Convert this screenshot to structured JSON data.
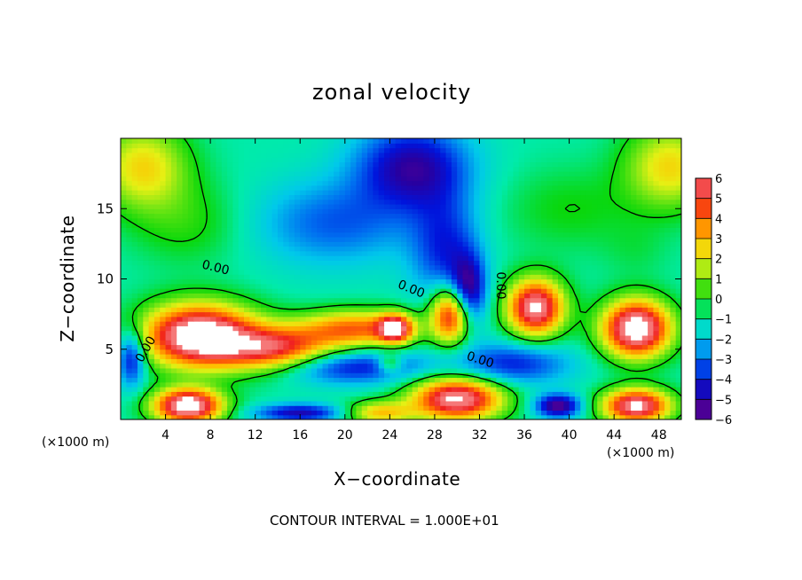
{
  "chart_data": {
    "type": "heatmap",
    "title": "zonal velocity",
    "xlabel": "X−coordinate",
    "ylabel": "Z−coordinate",
    "x_unit_left": "(×1000 m)",
    "x_unit_right": "(×1000 m)",
    "xlim": [
      0,
      50
    ],
    "ylim": [
      0,
      20
    ],
    "x_ticks": [
      4,
      8,
      12,
      16,
      20,
      24,
      28,
      32,
      36,
      40,
      44,
      48
    ],
    "x_tick_labels": [
      "4",
      "8",
      "12",
      "16",
      "20",
      "24",
      "28",
      "32",
      "36",
      "40",
      "44",
      "48"
    ],
    "y_ticks": [
      5,
      10,
      15
    ],
    "y_tick_labels": [
      "5",
      "10",
      "15"
    ],
    "colorbar": {
      "min": -6,
      "max": 6,
      "levels": [
        6,
        5,
        4,
        3,
        2,
        1,
        0,
        -1,
        -2,
        -3,
        -4,
        -5,
        -6
      ],
      "labels": [
        "6",
        "5",
        "4",
        "3",
        "2",
        "1",
        "0",
        "−1",
        "−2",
        "−3",
        "−4",
        "−5",
        "−6"
      ]
    },
    "contour_labels": [
      "0.00",
      "0.00",
      "0.00",
      "0.00",
      "0.00"
    ],
    "footnote": "CONTOUR INTERVAL = 1.000E+01",
    "features": [
      {
        "x": 2,
        "z": 18,
        "value": 3.5,
        "sx": 4,
        "sz": 3
      },
      {
        "x": 49,
        "z": 18,
        "value": 3.5,
        "sx": 4,
        "sz": 3
      },
      {
        "x": 6,
        "z": 14,
        "value": 1.2,
        "sx": 5,
        "sz": 3
      },
      {
        "x": 26,
        "z": 18,
        "value": -4.0,
        "sx": 5,
        "sz": 3
      },
      {
        "x": 19,
        "z": 14,
        "value": -2.2,
        "sx": 7,
        "sz": 3
      },
      {
        "x": 29,
        "z": 12,
        "value": -2.8,
        "sx": 3,
        "sz": 4
      },
      {
        "x": 31,
        "z": 9,
        "value": -4.5,
        "sx": 1.5,
        "sz": 2.5
      },
      {
        "x": 40,
        "z": 15,
        "value": 1.0,
        "sx": 6,
        "sz": 3
      },
      {
        "x": 46,
        "z": 12,
        "value": 0.5,
        "sx": 3,
        "sz": 2
      },
      {
        "x": 7,
        "z": 6,
        "value": 9.0,
        "sx": 5,
        "sz": 2.2
      },
      {
        "x": 14,
        "z": 5,
        "value": 6.0,
        "sx": 5,
        "sz": 1.6
      },
      {
        "x": 21,
        "z": 6.5,
        "value": 5.0,
        "sx": 5,
        "sz": 1.3
      },
      {
        "x": 24.5,
        "z": 6.5,
        "value": 6.5,
        "sx": 1.5,
        "sz": 1
      },
      {
        "x": 29.5,
        "z": 7.5,
        "value": 7.0,
        "sx": 1.8,
        "sz": 2
      },
      {
        "x": 37,
        "z": 8,
        "value": 8.0,
        "sx": 2.5,
        "sz": 2
      },
      {
        "x": 46,
        "z": 6.5,
        "value": 9.0,
        "sx": 3,
        "sz": 2
      },
      {
        "x": 20,
        "z": 3.8,
        "value": -3.5,
        "sx": 7,
        "sz": 1.2
      },
      {
        "x": 35,
        "z": 4,
        "value": -3.0,
        "sx": 5,
        "sz": 1.5
      },
      {
        "x": 1,
        "z": 4.5,
        "value": -4.0,
        "sx": 1.2,
        "sz": 2
      },
      {
        "x": 24,
        "z": 4,
        "value": 3.0,
        "sx": 1,
        "sz": 0.6
      },
      {
        "x": 6,
        "z": 1,
        "value": 9.0,
        "sx": 3,
        "sz": 1.2
      },
      {
        "x": 30,
        "z": 1.5,
        "value": 8.0,
        "sx": 4,
        "sz": 1.5
      },
      {
        "x": 23,
        "z": 0.5,
        "value": 4.0,
        "sx": 3,
        "sz": 0.8
      },
      {
        "x": 46,
        "z": 1,
        "value": 8.0,
        "sx": 3,
        "sz": 1.2
      },
      {
        "x": 16,
        "z": 0.5,
        "value": -4.0,
        "sx": 4,
        "sz": 0.6
      },
      {
        "x": 39,
        "z": 1,
        "value": -5.0,
        "sx": 2,
        "sz": 0.8
      }
    ]
  }
}
